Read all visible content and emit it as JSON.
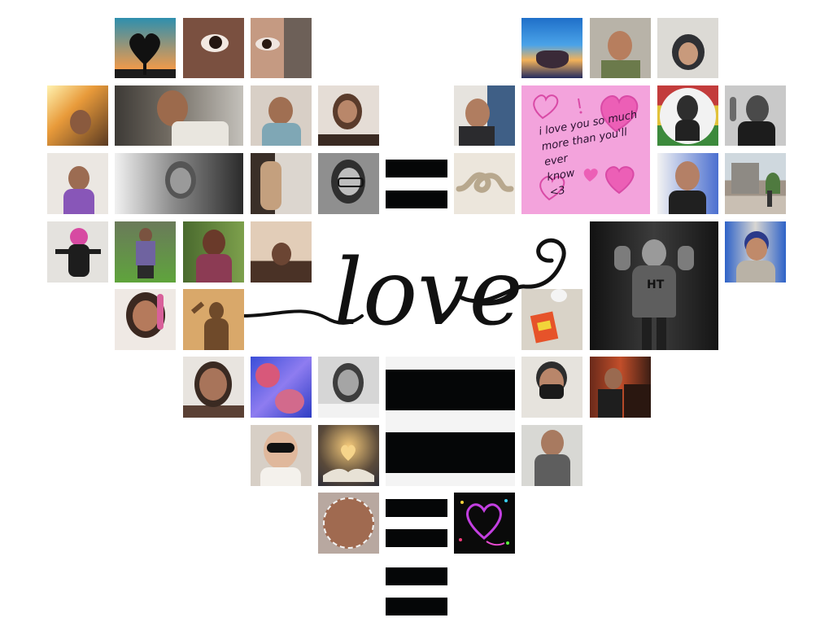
{
  "love_word": "love",
  "love_note": "i love you so much\nmore than you'll ever\nknow\n<3",
  "colors": {
    "background": "#ffffff",
    "bar": "#050607",
    "note_pink": "#f3a3dc",
    "heart_pink": "#ec5fb6",
    "ink": "#111111"
  }
}
